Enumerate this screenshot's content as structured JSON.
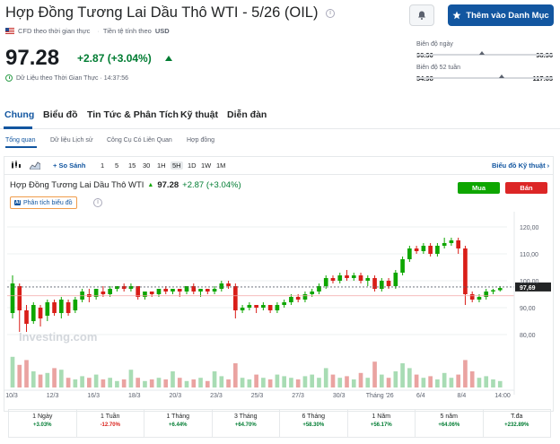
{
  "header": {
    "title": "Hợp Đồng Tương Lai Dầu Thô WTI - 5/26 (OIL)",
    "info_icon": "info-icon",
    "notif_icon": "bell-plus-icon",
    "watchlist_label": "Thêm vào Danh Mục",
    "meta_type": "CFD theo thời gian thực",
    "meta_currency_label": "Tiền tệ tính theo",
    "meta_currency": "USD"
  },
  "quote": {
    "price": "97.28",
    "change": "+2.87 (+3.04%)",
    "realtime_label": "Dữ Liệu theo Thời Gian Thực · 14:37:56"
  },
  "ranges": {
    "day_label": "Biên độ ngày",
    "day_low": "96.30",
    "day_high": "98.36",
    "day_position": 0.48,
    "week52_label": "Biên độ 52 tuần",
    "week52_low": "54.98",
    "week52_high": "117.63",
    "week52_position": 0.68
  },
  "tabs": [
    "Chung",
    "Biểu đồ",
    "Tin Tức & Phân Tích",
    "Kỹ thuật",
    "Diễn đàn"
  ],
  "subtabs": [
    "Tổng quan",
    "Dữ liệu Lịch sử",
    "Công Cụ Có Liên Quan",
    "Hợp đồng"
  ],
  "toolbar": {
    "compare": "So Sánh",
    "intervals": [
      "1",
      "5",
      "15",
      "30",
      "1H",
      "5H",
      "1D",
      "1W",
      "1M"
    ],
    "active_interval": "5H",
    "advanced": "Biểu đồ Kỹ thuật"
  },
  "chart_header": {
    "name": "Hợp Đồng Tương Lai Dầu Thô WTI",
    "price": "97.28",
    "change": "+2.87 (+3.04%)",
    "buy": "Mua",
    "sell": "Bán",
    "analysis": "Phân tích biểu đồ",
    "ai_badge": "AI",
    "current_tag": "97,69",
    "watermark": "Investing.com"
  },
  "chart_data": {
    "type": "candlestick",
    "x_labels": [
      "10/3",
      "12/3",
      "16/3",
      "18/3",
      "20/3",
      "23/3",
      "25/3",
      "27/3",
      "30/3",
      "Tháng '26",
      "6/4",
      "8/4",
      "14:00"
    ],
    "y_ticks": [
      "120,00",
      "110,00",
      "100,00",
      "90,00",
      "80,00"
    ],
    "ylim": [
      77,
      125
    ],
    "reference_line": 94.41,
    "current_price_line": 97.69,
    "candles": [
      {
        "o": 88,
        "c": 99,
        "h": 102,
        "l": 86
      },
      {
        "o": 98,
        "c": 89,
        "h": 99,
        "l": 81
      },
      {
        "o": 89,
        "c": 84,
        "h": 91,
        "l": 81
      },
      {
        "o": 85,
        "c": 91,
        "h": 92,
        "l": 84
      },
      {
        "o": 90,
        "c": 86,
        "h": 91,
        "l": 83
      },
      {
        "o": 87,
        "c": 92,
        "h": 93,
        "l": 85
      },
      {
        "o": 92,
        "c": 88,
        "h": 93,
        "l": 87
      },
      {
        "o": 88,
        "c": 93,
        "h": 94,
        "l": 86
      },
      {
        "o": 92,
        "c": 88,
        "h": 93,
        "l": 87
      },
      {
        "o": 89,
        "c": 93,
        "h": 94,
        "l": 88
      },
      {
        "o": 93,
        "c": 96,
        "h": 97,
        "l": 92
      },
      {
        "o": 95,
        "c": 94,
        "h": 97,
        "l": 92
      },
      {
        "o": 94,
        "c": 97,
        "h": 97,
        "l": 93
      },
      {
        "o": 96,
        "c": 95,
        "h": 98,
        "l": 94
      },
      {
        "o": 95,
        "c": 97,
        "h": 98,
        "l": 94
      },
      {
        "o": 97,
        "c": 98,
        "h": 98,
        "l": 96
      },
      {
        "o": 98,
        "c": 97,
        "h": 99,
        "l": 96
      },
      {
        "o": 97,
        "c": 98,
        "h": 99,
        "l": 96
      },
      {
        "o": 98,
        "c": 94,
        "h": 98,
        "l": 93
      },
      {
        "o": 94,
        "c": 96,
        "h": 96,
        "l": 93
      },
      {
        "o": 96,
        "c": 95,
        "h": 96,
        "l": 94
      },
      {
        "o": 95,
        "c": 97,
        "h": 97,
        "l": 94
      },
      {
        "o": 97,
        "c": 96,
        "h": 98,
        "l": 95
      },
      {
        "o": 96,
        "c": 97,
        "h": 97,
        "l": 95
      },
      {
        "o": 97,
        "c": 96,
        "h": 97,
        "l": 94
      },
      {
        "o": 96,
        "c": 98,
        "h": 98,
        "l": 95
      },
      {
        "o": 98,
        "c": 96,
        "h": 99,
        "l": 95
      },
      {
        "o": 96,
        "c": 97,
        "h": 97,
        "l": 94
      },
      {
        "o": 97,
        "c": 96,
        "h": 97,
        "l": 95
      },
      {
        "o": 96,
        "c": 97,
        "h": 98,
        "l": 95
      },
      {
        "o": 97,
        "c": 99,
        "h": 100,
        "l": 96
      },
      {
        "o": 99,
        "c": 98,
        "h": 100,
        "l": 97
      },
      {
        "o": 98,
        "c": 89,
        "h": 99,
        "l": 86
      },
      {
        "o": 89,
        "c": 90,
        "h": 91,
        "l": 88
      },
      {
        "o": 90,
        "c": 91,
        "h": 92,
        "l": 89
      },
      {
        "o": 91,
        "c": 90,
        "h": 91,
        "l": 88
      },
      {
        "o": 90,
        "c": 91,
        "h": 92,
        "l": 89
      },
      {
        "o": 91,
        "c": 89,
        "h": 91,
        "l": 88
      },
      {
        "o": 89,
        "c": 91,
        "h": 92,
        "l": 88
      },
      {
        "o": 91,
        "c": 92,
        "h": 93,
        "l": 90
      },
      {
        "o": 92,
        "c": 94,
        "h": 95,
        "l": 91
      },
      {
        "o": 94,
        "c": 93,
        "h": 95,
        "l": 92
      },
      {
        "o": 93,
        "c": 95,
        "h": 96,
        "l": 92
      },
      {
        "o": 95,
        "c": 96,
        "h": 97,
        "l": 94
      },
      {
        "o": 96,
        "c": 98,
        "h": 99,
        "l": 95
      },
      {
        "o": 98,
        "c": 101,
        "h": 102,
        "l": 97
      },
      {
        "o": 101,
        "c": 100,
        "h": 102,
        "l": 99
      },
      {
        "o": 100,
        "c": 102,
        "h": 103,
        "l": 99
      },
      {
        "o": 102,
        "c": 101,
        "h": 104,
        "l": 100
      },
      {
        "o": 101,
        "c": 102,
        "h": 103,
        "l": 100
      },
      {
        "o": 102,
        "c": 100,
        "h": 103,
        "l": 99
      },
      {
        "o": 100,
        "c": 101,
        "h": 102,
        "l": 98
      },
      {
        "o": 101,
        "c": 97,
        "h": 102,
        "l": 96
      },
      {
        "o": 97,
        "c": 100,
        "h": 101,
        "l": 96
      },
      {
        "o": 100,
        "c": 98,
        "h": 101,
        "l": 97
      },
      {
        "o": 98,
        "c": 103,
        "h": 104,
        "l": 97
      },
      {
        "o": 103,
        "c": 108,
        "h": 109,
        "l": 102
      },
      {
        "o": 108,
        "c": 112,
        "h": 113,
        "l": 107
      },
      {
        "o": 112,
        "c": 111,
        "h": 113,
        "l": 110
      },
      {
        "o": 111,
        "c": 113,
        "h": 114,
        "l": 110
      },
      {
        "o": 113,
        "c": 110,
        "h": 114,
        "l": 109
      },
      {
        "o": 110,
        "c": 113,
        "h": 114,
        "l": 109
      },
      {
        "o": 113,
        "c": 114,
        "h": 116,
        "l": 112
      },
      {
        "o": 114,
        "c": 115,
        "h": 116,
        "l": 113
      },
      {
        "o": 115,
        "c": 112,
        "h": 116,
        "l": 110
      },
      {
        "o": 112,
        "c": 95,
        "h": 113,
        "l": 91
      },
      {
        "o": 95,
        "c": 93,
        "h": 96,
        "l": 92
      },
      {
        "o": 93,
        "c": 94,
        "h": 95,
        "l": 92
      },
      {
        "o": 94,
        "c": 96,
        "h": 97,
        "l": 93
      },
      {
        "o": 96,
        "c": 96.5,
        "h": 97,
        "l": 95
      },
      {
        "o": 96.5,
        "c": 97.3,
        "h": 98,
        "l": 96
      }
    ],
    "volume": [
      0.95,
      0.7,
      0.85,
      0.5,
      0.4,
      0.45,
      0.6,
      0.55,
      0.3,
      0.25,
      0.35,
      0.3,
      0.4,
      0.25,
      0.3,
      0.2,
      0.25,
      0.55,
      0.3,
      0.2,
      0.25,
      0.3,
      0.25,
      0.5,
      0.3,
      0.2,
      0.25,
      0.3,
      0.2,
      0.5,
      0.35,
      0.25,
      0.75,
      0.3,
      0.25,
      0.4,
      0.3,
      0.25,
      0.4,
      0.35,
      0.3,
      0.25,
      0.35,
      0.4,
      0.3,
      0.6,
      0.4,
      0.3,
      0.35,
      0.25,
      0.45,
      0.3,
      0.8,
      0.4,
      0.3,
      0.5,
      0.75,
      0.6,
      0.4,
      0.3,
      0.35,
      0.25,
      0.45,
      0.3,
      0.4,
      0.85,
      0.5,
      0.3,
      0.35,
      0.25,
      0.2
    ]
  },
  "performance": [
    {
      "label": "1 Ngày",
      "value": "+3.03%",
      "dir": "pos"
    },
    {
      "label": "1 Tuần",
      "value": "-12.70%",
      "dir": "neg"
    },
    {
      "label": "1 Tháng",
      "value": "+6.44%",
      "dir": "pos"
    },
    {
      "label": "3 Tháng",
      "value": "+64.70%",
      "dir": "pos"
    },
    {
      "label": "6 Tháng",
      "value": "+58.30%",
      "dir": "pos"
    },
    {
      "label": "1 Năm",
      "value": "+56.17%",
      "dir": "pos"
    },
    {
      "label": "5 năm",
      "value": "+64.06%",
      "dir": "pos"
    },
    {
      "label": "T.đa",
      "value": "+232.89%",
      "dir": "pos"
    }
  ],
  "colors": {
    "brand": "#1256a0",
    "up": "#0ea600",
    "down": "#d91e18",
    "up_text": "#007c32"
  }
}
